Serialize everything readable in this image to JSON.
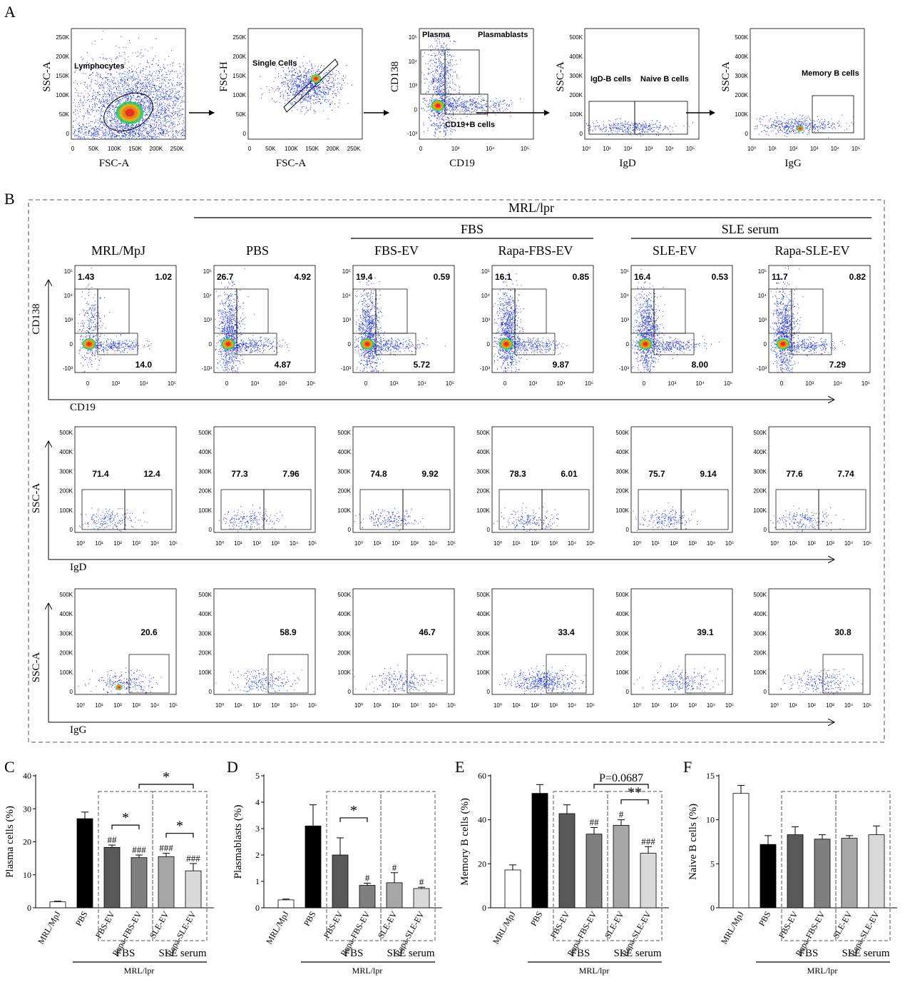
{
  "panels": {
    "A": "A",
    "B": "B",
    "C": "C",
    "D": "D",
    "E": "E",
    "F": "F"
  },
  "gating": [
    {
      "xlabel": "FSC-A",
      "ylabel": "SSC-A",
      "gates": [
        "Lymphocytes"
      ],
      "xticks": [
        "0",
        "50K",
        "100K",
        "150K",
        "200K",
        "250K"
      ],
      "yticks": [
        "250K",
        "200K",
        "150K",
        "100K",
        "50K",
        "0"
      ]
    },
    {
      "xlabel": "FSC-A",
      "ylabel": "FSC-H",
      "gates": [
        "Single Cells"
      ],
      "xticks": [
        "0",
        "50K",
        "100K",
        "150K",
        "200K",
        "250K"
      ],
      "yticks": [
        "250K",
        "200K",
        "150K",
        "100K",
        "50K",
        "0"
      ]
    },
    {
      "xlabel": "CD19",
      "ylabel": "CD138",
      "gates": [
        "Plasma",
        "Plasmablasts",
        "CD19+B cells"
      ],
      "xticks": [
        "0",
        "10³",
        "10⁴",
        "10⁵"
      ],
      "yticks": [
        "10⁵",
        "10⁴",
        "10³",
        "0",
        "-10³"
      ]
    },
    {
      "xlabel": "IgD",
      "ylabel": "SSC-A",
      "gates": [
        "IgD-B cells",
        "Naive B cells"
      ],
      "xticks": [
        "10⁰",
        "10¹",
        "10²",
        "10³",
        "10⁴",
        "10⁵"
      ],
      "yticks": [
        "500K",
        "400K",
        "300K",
        "200K",
        "100K",
        "0"
      ]
    },
    {
      "xlabel": "IgG",
      "ylabel": "SSC-A",
      "gates": [
        "Memory B cells"
      ],
      "xticks": [
        "10⁰",
        "10¹",
        "10²",
        "10³",
        "10⁴",
        "10⁵"
      ],
      "yticks": [
        "500K",
        "400K",
        "300K",
        "200K",
        "100K",
        "0"
      ]
    }
  ],
  "groups_header": {
    "mrl_lpr": "MRL/lpr",
    "fbs": "FBS",
    "sle_serum": "SLE serum"
  },
  "groups": [
    "MRL/MpJ",
    "PBS",
    "FBS-EV",
    "Rapa-FBS-EV",
    "SLE-EV",
    "Rapa-SLE-EV"
  ],
  "row1": {
    "xlabel": "CD19",
    "ylabel": "CD138",
    "tl": [
      "1.43",
      "26.7",
      "19.4",
      "16.1",
      "16.4",
      "11.7"
    ],
    "tr": [
      "1.02",
      "4.92",
      "0.59",
      "0.85",
      "0.53",
      "0.82"
    ],
    "br": [
      "14.0",
      "4.87",
      "5.72",
      "9.87",
      "8.00",
      "7.29"
    ],
    "xticks": [
      "0",
      "10³",
      "10⁴",
      "10⁵"
    ],
    "yticks": [
      "10⁵",
      "10⁴",
      "10³",
      "0",
      "-10³"
    ]
  },
  "row2": {
    "xlabel": "IgD",
    "ylabel": "SSC-A",
    "left": [
      "71.4",
      "77.3",
      "74.8",
      "78.3",
      "75.7",
      "77.6"
    ],
    "right": [
      "12.4",
      "7.96",
      "9.92",
      "6.01",
      "9.14",
      "7.74"
    ]
  },
  "row3": {
    "xlabel": "IgG",
    "ylabel": "SSC-A",
    "vals": [
      "20.6",
      "58.9",
      "46.7",
      "33.4",
      "39.1",
      "30.8"
    ]
  },
  "ssc_ticks": [
    "500K",
    "400K",
    "300K",
    "200K",
    "100K",
    "0"
  ],
  "log_ticks": [
    "10⁰",
    "10¹",
    "10²",
    "10³",
    "10⁴",
    "10⁵"
  ],
  "p_value": "P=0.0687",
  "colors": {
    "ctrl": "#ffffff",
    "pbs": "#000000",
    "fbs_ev": "#595959",
    "rapa_fbs": "#7f7f7f",
    "sle_ev": "#a6a6a6",
    "rapa_sle": "#d9d9d9"
  },
  "chart_data": [
    {
      "type": "bar",
      "panel": "C",
      "ylabel": "Plasma cells (%)",
      "ylim": [
        0,
        40
      ],
      "yticks": [
        "0",
        "10",
        "20",
        "30",
        "40"
      ],
      "categories": [
        "MRL/MpJ",
        "PBS",
        "FBS-EV",
        "Rapa-FBS-EV",
        "SLE-EV",
        "Rapa-SLE-EV"
      ],
      "values": [
        1.8,
        27.0,
        18.3,
        15.2,
        15.5,
        11.2
      ],
      "errors": [
        0.2,
        2.0,
        0.7,
        0.8,
        1.0,
        2.2
      ],
      "marks": [
        "",
        "",
        "##",
        "###",
        "###",
        "###"
      ],
      "brackets": [
        {
          "from": 2,
          "to": 3,
          "label": "*"
        },
        {
          "from": 4,
          "to": 5,
          "label": "*"
        },
        {
          "from": 3,
          "to": 5,
          "label": "*"
        }
      ]
    },
    {
      "type": "bar",
      "panel": "D",
      "ylabel": "Plasmablasts (%)",
      "ylim": [
        0,
        5
      ],
      "yticks": [
        "0",
        "1",
        "2",
        "3",
        "4",
        "5"
      ],
      "categories": [
        "MRL/MpJ",
        "PBS",
        "FBS-EV",
        "Rapa-FBS-EV",
        "SLE-EV",
        "Rapa-SLE-EV"
      ],
      "values": [
        0.3,
        3.1,
        2.0,
        0.85,
        0.95,
        0.73
      ],
      "errors": [
        0.03,
        0.8,
        0.65,
        0.08,
        0.38,
        0.05
      ],
      "marks": [
        "",
        "",
        "",
        "#",
        "#",
        "#"
      ],
      "brackets": [
        {
          "from": 2,
          "to": 3,
          "label": "*"
        }
      ]
    },
    {
      "type": "bar",
      "panel": "E",
      "ylabel": "Memory B cells (%)",
      "ylim": [
        0,
        60
      ],
      "yticks": [
        "0",
        "20",
        "40",
        "60"
      ],
      "categories": [
        "MRL/MpJ",
        "PBS",
        "FBS-EV",
        "Rapa-FBS-EV",
        "SLE-EV",
        "Rapa-SLE-EV"
      ],
      "values": [
        17.2,
        52.0,
        42.8,
        33.5,
        37.5,
        24.8
      ],
      "errors": [
        2.3,
        4.0,
        4.0,
        3.0,
        2.5,
        3.0
      ],
      "marks": [
        "",
        "",
        "",
        "##",
        "#",
        "###"
      ],
      "brackets": [
        {
          "from": 4,
          "to": 5,
          "label": "**"
        },
        {
          "from": 3,
          "to": 5,
          "label": "P=0.0687"
        }
      ]
    },
    {
      "type": "bar",
      "panel": "F",
      "ylabel": "Naive B cells (%)",
      "ylim": [
        0,
        15
      ],
      "yticks": [
        "0",
        "5",
        "10",
        "15"
      ],
      "categories": [
        "MRL/MpJ",
        "PBS",
        "FBS-EV",
        "Rapa-FBS-EV",
        "SLE-EV",
        "Rapa-SLE-EV"
      ],
      "values": [
        13.0,
        7.2,
        8.3,
        7.8,
        7.9,
        8.3
      ],
      "errors": [
        0.9,
        1.0,
        0.9,
        0.5,
        0.3,
        1.0
      ],
      "marks": [
        "",
        "",
        "",
        "",
        "",
        ""
      ],
      "brackets": []
    }
  ]
}
